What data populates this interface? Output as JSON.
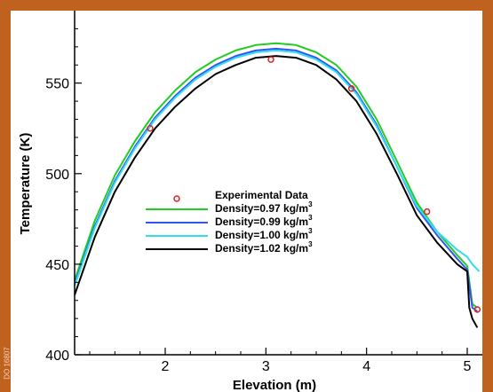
{
  "watermark": "DO 16807",
  "chart_data": {
    "type": "line",
    "xlabel": "Elevation (m)",
    "ylabel": "Temperature (K)",
    "xlim": [
      1.1,
      5.15
    ],
    "ylim": [
      400,
      590
    ],
    "xticks": [
      2,
      3,
      4,
      5
    ],
    "yticks": [
      400,
      450,
      500,
      550
    ],
    "grid": false,
    "legend_position": "center",
    "series": [
      {
        "name": "Experimental Data",
        "kind": "scatter",
        "color": "#dd2222",
        "x": [
          1.85,
          3.05,
          3.85,
          4.6,
          5.1
        ],
        "y": [
          525,
          563,
          547,
          479,
          425
        ]
      },
      {
        "name": "Density=0.97 kg/m³",
        "kind": "line",
        "color": "#22cc22",
        "x": [
          1.1,
          1.3,
          1.5,
          1.7,
          1.9,
          2.1,
          2.3,
          2.5,
          2.7,
          2.9,
          3.1,
          3.3,
          3.5,
          3.7,
          3.9,
          4.1,
          4.3,
          4.5,
          4.7,
          4.9,
          5.0,
          5.05,
          5.1
        ],
        "y": [
          441,
          474,
          499,
          518,
          534,
          546,
          556,
          563,
          568,
          571,
          572,
          571,
          567,
          560,
          548,
          530,
          507,
          484,
          468,
          455,
          449,
          428,
          426
        ]
      },
      {
        "name": "Density=0.99 kg/m³",
        "kind": "line",
        "color": "#3355ee",
        "x": [
          1.1,
          1.3,
          1.5,
          1.7,
          1.9,
          2.1,
          2.3,
          2.5,
          2.7,
          2.9,
          3.1,
          3.3,
          3.5,
          3.7,
          3.9,
          4.1,
          4.3,
          4.5,
          4.7,
          4.9,
          5.0,
          5.05,
          5.1
        ],
        "y": [
          439,
          471,
          496,
          515,
          531,
          543,
          553,
          560,
          565,
          568,
          569,
          568,
          564,
          557,
          545,
          527,
          504,
          481,
          466,
          453,
          447,
          426,
          424
        ]
      },
      {
        "name": "Density=1.00 kg/m³",
        "kind": "line",
        "color": "#33ddee",
        "x": [
          1.1,
          1.3,
          1.5,
          1.7,
          1.9,
          2.1,
          2.3,
          2.5,
          2.7,
          2.9,
          3.1,
          3.3,
          3.5,
          3.7,
          3.9,
          4.1,
          4.3,
          4.5,
          4.7,
          4.9,
          5.0,
          5.05,
          5.12
        ],
        "y": [
          438,
          470,
          495,
          514,
          530,
          542,
          552,
          559,
          564,
          567,
          568,
          567,
          563,
          556,
          544,
          526,
          504,
          482,
          468,
          458,
          454,
          450,
          446
        ]
      },
      {
        "name": "Density=1.02 kg/m³",
        "kind": "line",
        "color": "#000000",
        "x": [
          1.1,
          1.3,
          1.5,
          1.7,
          1.9,
          2.1,
          2.3,
          2.5,
          2.7,
          2.9,
          3.1,
          3.3,
          3.5,
          3.7,
          3.9,
          4.1,
          4.3,
          4.5,
          4.7,
          4.9,
          5.0,
          5.02,
          5.05,
          5.1
        ],
        "y": [
          433,
          465,
          490,
          509,
          525,
          537,
          547,
          555,
          560,
          564,
          565,
          564,
          560,
          552,
          540,
          522,
          500,
          477,
          462,
          450,
          446,
          426,
          420,
          415
        ]
      }
    ],
    "legend": [
      {
        "label": "Experimental Data",
        "marker": "circle",
        "color": "#dd2222"
      },
      {
        "label": "Density=0.97 kg/m",
        "sup": "3",
        "color": "#22cc22"
      },
      {
        "label": "Density=0.99 kg/m",
        "sup": "3",
        "color": "#3355ee"
      },
      {
        "label": "Density=1.00 kg/m",
        "sup": "3",
        "color": "#33ddee"
      },
      {
        "label": "Density=1.02 kg/m",
        "sup": "3",
        "color": "#000000"
      }
    ]
  }
}
